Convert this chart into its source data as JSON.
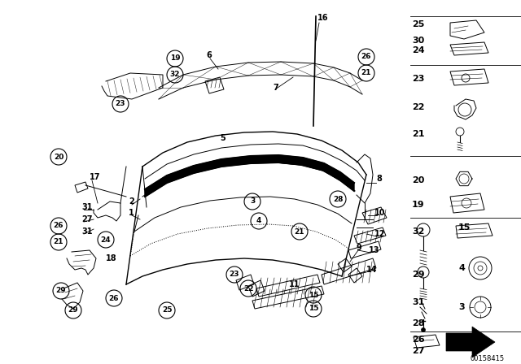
{
  "bg_color": "#ffffff",
  "fig_width": 6.4,
  "fig_height": 4.48,
  "dpi": 100,
  "watermark": "00158415"
}
